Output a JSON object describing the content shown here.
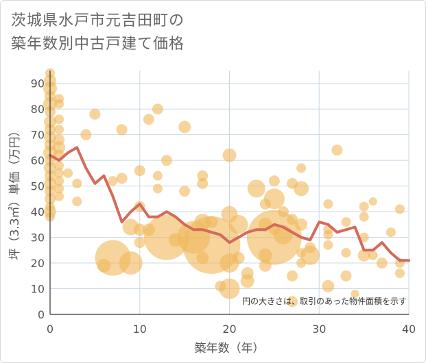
{
  "title_lines": [
    "茨城県水戸市元吉田町の",
    "築年数別中古戸建て価格"
  ],
  "colors": {
    "bubble_fill": "#f0b75a",
    "bubble_opacity": 0.6,
    "line": "#d46a5a",
    "grid": "#c8d8e6",
    "plot_bg": "#ffffff"
  },
  "chart_data": {
    "type": "scatter",
    "xlabel": "築年数（年）",
    "ylabel": "坪（3.3㎡）単価（万円）",
    "xlim": [
      0,
      40
    ],
    "ylim": [
      0,
      95
    ],
    "xticks": [
      0,
      10,
      20,
      30,
      40
    ],
    "yticks": [
      0,
      10,
      20,
      30,
      40,
      50,
      60,
      70,
      80,
      90
    ],
    "grid": true,
    "annotation": "円の大きさは、取引のあった物件面積を示す",
    "bubbles": [
      {
        "x": 0,
        "y": 94,
        "s": 7
      },
      {
        "x": 0,
        "y": 91,
        "s": 9
      },
      {
        "x": 0,
        "y": 88,
        "s": 10
      },
      {
        "x": 0,
        "y": 85,
        "s": 8
      },
      {
        "x": 0,
        "y": 82,
        "s": 10
      },
      {
        "x": 0,
        "y": 79,
        "s": 8
      },
      {
        "x": 0,
        "y": 75,
        "s": 9
      },
      {
        "x": 0,
        "y": 72,
        "s": 8
      },
      {
        "x": 0,
        "y": 69,
        "s": 9
      },
      {
        "x": 0,
        "y": 66,
        "s": 8
      },
      {
        "x": 0,
        "y": 63,
        "s": 10
      },
      {
        "x": 0,
        "y": 60,
        "s": 8
      },
      {
        "x": 0,
        "y": 57,
        "s": 9
      },
      {
        "x": 0,
        "y": 54,
        "s": 8
      },
      {
        "x": 0,
        "y": 51,
        "s": 9
      },
      {
        "x": 0,
        "y": 48,
        "s": 8
      },
      {
        "x": 0,
        "y": 45,
        "s": 8
      },
      {
        "x": 0,
        "y": 42,
        "s": 7
      },
      {
        "x": 0,
        "y": 40,
        "s": 9
      },
      {
        "x": 0,
        "y": 38,
        "s": 7
      },
      {
        "x": 1,
        "y": 84,
        "s": 7
      },
      {
        "x": 1,
        "y": 82,
        "s": 7
      },
      {
        "x": 1,
        "y": 76,
        "s": 7
      },
      {
        "x": 1,
        "y": 72,
        "s": 7
      },
      {
        "x": 1,
        "y": 68,
        "s": 8
      },
      {
        "x": 1,
        "y": 65,
        "s": 9
      },
      {
        "x": 1,
        "y": 62,
        "s": 8
      },
      {
        "x": 1,
        "y": 58,
        "s": 7
      },
      {
        "x": 1,
        "y": 55,
        "s": 7
      },
      {
        "x": 1,
        "y": 52,
        "s": 7
      },
      {
        "x": 1,
        "y": 49,
        "s": 7
      },
      {
        "x": 1,
        "y": 46,
        "s": 7
      },
      {
        "x": 2,
        "y": 55,
        "s": 7
      },
      {
        "x": 3,
        "y": 51,
        "s": 7
      },
      {
        "x": 3,
        "y": 44,
        "s": 7
      },
      {
        "x": 4,
        "y": 70,
        "s": 8
      },
      {
        "x": 5,
        "y": 78,
        "s": 8
      },
      {
        "x": 6,
        "y": 19,
        "s": 10
      },
      {
        "x": 7,
        "y": 52,
        "s": 7
      },
      {
        "x": 7,
        "y": 22,
        "s": 26
      },
      {
        "x": 8,
        "y": 72,
        "s": 8
      },
      {
        "x": 8,
        "y": 53,
        "s": 8
      },
      {
        "x": 9,
        "y": 34,
        "s": 12
      },
      {
        "x": 9,
        "y": 20,
        "s": 17
      },
      {
        "x": 10,
        "y": 56,
        "s": 8
      },
      {
        "x": 10,
        "y": 42,
        "s": 8
      },
      {
        "x": 10,
        "y": 33,
        "s": 9
      },
      {
        "x": 10,
        "y": 28,
        "s": 8
      },
      {
        "x": 11,
        "y": 76,
        "s": 8
      },
      {
        "x": 11,
        "y": 33,
        "s": 9
      },
      {
        "x": 12,
        "y": 80,
        "s": 8
      },
      {
        "x": 12,
        "y": 54,
        "s": 7
      },
      {
        "x": 12,
        "y": 49,
        "s": 7
      },
      {
        "x": 13,
        "y": 60,
        "s": 8
      },
      {
        "x": 13,
        "y": 30,
        "s": 33
      },
      {
        "x": 14,
        "y": 29,
        "s": 10
      },
      {
        "x": 15,
        "y": 73,
        "s": 9
      },
      {
        "x": 15,
        "y": 48,
        "s": 8
      },
      {
        "x": 16,
        "y": 30,
        "s": 24
      },
      {
        "x": 17,
        "y": 54,
        "s": 8
      },
      {
        "x": 17,
        "y": 51,
        "s": 8
      },
      {
        "x": 17,
        "y": 36,
        "s": 12
      },
      {
        "x": 17,
        "y": 22,
        "s": 9
      },
      {
        "x": 18,
        "y": 27,
        "s": 42
      },
      {
        "x": 18,
        "y": 36,
        "s": 9
      },
      {
        "x": 19,
        "y": 11,
        "s": 8
      },
      {
        "x": 20,
        "y": 20,
        "s": 14
      },
      {
        "x": 20,
        "y": 10,
        "s": 15
      },
      {
        "x": 20,
        "y": 62,
        "s": 10
      },
      {
        "x": 20,
        "y": 39,
        "s": 12
      },
      {
        "x": 21,
        "y": 35,
        "s": 14
      },
      {
        "x": 21,
        "y": 22,
        "s": 9
      },
      {
        "x": 22,
        "y": 16,
        "s": 9
      },
      {
        "x": 22,
        "y": 13,
        "s": 10
      },
      {
        "x": 23,
        "y": 49,
        "s": 13
      },
      {
        "x": 24,
        "y": 43,
        "s": 8
      },
      {
        "x": 24,
        "y": 35,
        "s": 10
      },
      {
        "x": 24,
        "y": 23,
        "s": 10
      },
      {
        "x": 24,
        "y": 19,
        "s": 9
      },
      {
        "x": 25,
        "y": 52,
        "s": 8
      },
      {
        "x": 25,
        "y": 45,
        "s": 15
      },
      {
        "x": 25,
        "y": 33,
        "s": 8
      },
      {
        "x": 25,
        "y": 30,
        "s": 40
      },
      {
        "x": 26,
        "y": 40,
        "s": 8
      },
      {
        "x": 26,
        "y": 31,
        "s": 14
      },
      {
        "x": 27,
        "y": 51,
        "s": 8
      },
      {
        "x": 27,
        "y": 37,
        "s": 8
      },
      {
        "x": 27,
        "y": 15,
        "s": 8
      },
      {
        "x": 27,
        "y": 5,
        "s": 8
      },
      {
        "x": 28,
        "y": 57,
        "s": 7
      },
      {
        "x": 28,
        "y": 49,
        "s": 11
      },
      {
        "x": 28,
        "y": 35,
        "s": 9
      },
      {
        "x": 28,
        "y": 24,
        "s": 7
      },
      {
        "x": 28,
        "y": 20,
        "s": 7
      },
      {
        "x": 29,
        "y": 26,
        "s": 8
      },
      {
        "x": 29,
        "y": 23,
        "s": 14
      },
      {
        "x": 31,
        "y": 43,
        "s": 7
      },
      {
        "x": 31,
        "y": 33,
        "s": 7
      },
      {
        "x": 31,
        "y": 31,
        "s": 7
      },
      {
        "x": 31,
        "y": 27,
        "s": 7
      },
      {
        "x": 31,
        "y": 11,
        "s": 9
      },
      {
        "x": 32,
        "y": 64,
        "s": 8
      },
      {
        "x": 33,
        "y": 36,
        "s": 7
      },
      {
        "x": 33,
        "y": 24,
        "s": 7
      },
      {
        "x": 33,
        "y": 15,
        "s": 8
      },
      {
        "x": 34,
        "y": 8,
        "s": 6
      },
      {
        "x": 35,
        "y": 42,
        "s": 7
      },
      {
        "x": 35,
        "y": 38,
        "s": 7
      },
      {
        "x": 35,
        "y": 30,
        "s": 7
      },
      {
        "x": 35,
        "y": 23,
        "s": 9
      },
      {
        "x": 36,
        "y": 44,
        "s": 6
      },
      {
        "x": 36,
        "y": 23,
        "s": 7
      },
      {
        "x": 37,
        "y": 20,
        "s": 8
      },
      {
        "x": 38,
        "y": 32,
        "s": 7
      },
      {
        "x": 39,
        "y": 41,
        "s": 7
      },
      {
        "x": 39,
        "y": 20,
        "s": 7
      },
      {
        "x": 39,
        "y": 16,
        "s": 7
      }
    ],
    "average_line": {
      "x": [
        0,
        1,
        2,
        3,
        4,
        5,
        6,
        7,
        8,
        9,
        10,
        11,
        12,
        13,
        14,
        15,
        16,
        17,
        18,
        19,
        20,
        21,
        22,
        23,
        24,
        25,
        26,
        27,
        28,
        29,
        30,
        31,
        32,
        33,
        34,
        35,
        36,
        37,
        38,
        39,
        40
      ],
      "y": [
        62,
        60,
        63,
        65,
        57,
        51,
        54,
        46,
        36,
        40,
        43,
        38,
        38,
        40,
        38,
        35,
        33,
        33,
        32,
        31,
        28,
        30,
        32,
        33,
        33,
        35,
        34,
        32,
        30,
        29,
        36,
        35,
        32,
        33,
        34,
        25,
        25,
        28,
        24,
        21,
        21
      ]
    }
  }
}
